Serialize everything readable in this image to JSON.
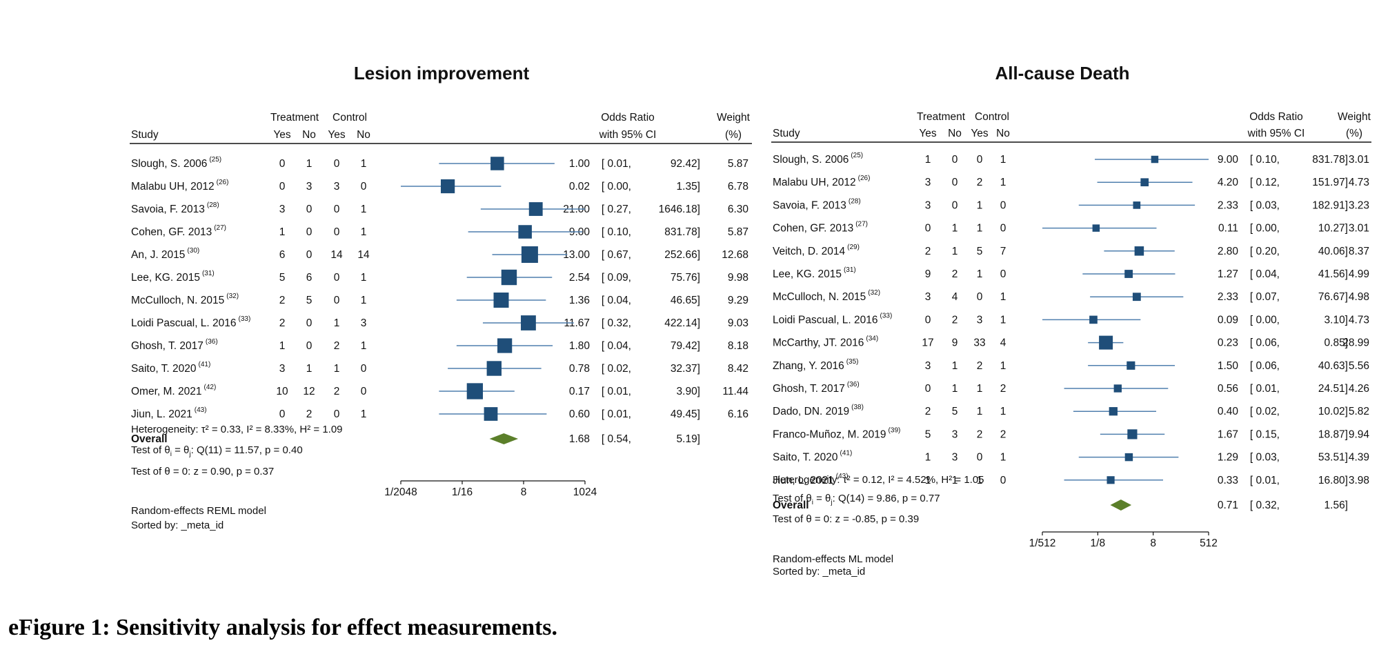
{
  "caption": "eFigure 1: Sensitivity analysis for effect measurements.",
  "chart_data": [
    {
      "type": "forest",
      "title": "Lesion improvement",
      "headers": {
        "study": "Study",
        "treatment": "Treatment",
        "control": "Control",
        "yes": "Yes",
        "no": "No",
        "or_line1": "Odds Ratio",
        "or_line2": "with 95% CI",
        "w_line1": "Weight",
        "w_line2": "(%)"
      },
      "x_scale": "log2",
      "x_ticks": [
        "1/2048",
        "1/16",
        "8",
        "1024"
      ],
      "x_tick_values": [
        0.00048828125,
        0.0625,
        8,
        1024
      ],
      "studies": [
        {
          "name": "Slough, S. 2006",
          "ref": "(25)",
          "t_yes": "0",
          "t_no": "1",
          "c_yes": "0",
          "c_no": "1",
          "or": 1.0,
          "lo": 0.01,
          "hi": 92.42,
          "or_text": "1.00",
          "lo_text": "[ 0.01,",
          "hi_text": "92.42]",
          "weight": "5.87"
        },
        {
          "name": "Malabu UH, 2012",
          "ref": "(26)",
          "t_yes": "0",
          "t_no": "3",
          "c_yes": "3",
          "c_no": "0",
          "or": 0.02,
          "lo": 0.0,
          "hi": 1.35,
          "or_text": "0.02",
          "lo_text": "[ 0.00,",
          "hi_text": "1.35]",
          "weight": "6.78"
        },
        {
          "name": "Savoia, F. 2013",
          "ref": "(28)",
          "t_yes": "3",
          "t_no": "0",
          "c_yes": "0",
          "c_no": "1",
          "or": 21.0,
          "lo": 0.27,
          "hi": 1646.18,
          "or_text": "21.00",
          "lo_text": "[ 0.27,",
          "hi_text": "1646.18]",
          "weight": "6.30"
        },
        {
          "name": "Cohen, GF. 2013",
          "ref": "(27)",
          "t_yes": "1",
          "t_no": "0",
          "c_yes": "0",
          "c_no": "1",
          "or": 9.0,
          "lo": 0.1,
          "hi": 831.78,
          "or_text": "9.00",
          "lo_text": "[ 0.10,",
          "hi_text": "831.78]",
          "weight": "5.87"
        },
        {
          "name": "An, J. 2015",
          "ref": "(30)",
          "t_yes": "6",
          "t_no": "0",
          "c_yes": "14",
          "c_no": "14",
          "or": 13.0,
          "lo": 0.67,
          "hi": 252.66,
          "or_text": "13.00",
          "lo_text": "[ 0.67,",
          "hi_text": "252.66]",
          "weight": "12.68"
        },
        {
          "name": "Lee, KG. 2015",
          "ref": "(31)",
          "t_yes": "5",
          "t_no": "6",
          "c_yes": "0",
          "c_no": "1",
          "or": 2.54,
          "lo": 0.09,
          "hi": 75.76,
          "or_text": "2.54",
          "lo_text": "[ 0.09,",
          "hi_text": "75.76]",
          "weight": "9.98"
        },
        {
          "name": "McCulloch, N. 2015",
          "ref": "(32)",
          "t_yes": "2",
          "t_no": "5",
          "c_yes": "0",
          "c_no": "1",
          "or": 1.36,
          "lo": 0.04,
          "hi": 46.65,
          "or_text": "1.36",
          "lo_text": "[ 0.04,",
          "hi_text": "46.65]",
          "weight": "9.29"
        },
        {
          "name": "Loidi Pascual, L. 2016",
          "ref": "(33)",
          "t_yes": "2",
          "t_no": "0",
          "c_yes": "1",
          "c_no": "3",
          "or": 11.67,
          "lo": 0.32,
          "hi": 422.14,
          "or_text": "11.67",
          "lo_text": "[ 0.32,",
          "hi_text": "422.14]",
          "weight": "9.03"
        },
        {
          "name": "Ghosh, T. 2017",
          "ref": "(36)",
          "t_yes": "1",
          "t_no": "0",
          "c_yes": "2",
          "c_no": "1",
          "or": 1.8,
          "lo": 0.04,
          "hi": 79.42,
          "or_text": "1.80",
          "lo_text": "[ 0.04,",
          "hi_text": "79.42]",
          "weight": "8.18"
        },
        {
          "name": "Saito, T. 2020",
          "ref": "(41)",
          "t_yes": "3",
          "t_no": "1",
          "c_yes": "1",
          "c_no": "0",
          "or": 0.78,
          "lo": 0.02,
          "hi": 32.37,
          "or_text": "0.78",
          "lo_text": "[ 0.02,",
          "hi_text": "32.37]",
          "weight": "8.42"
        },
        {
          "name": "Omer, M. 2021",
          "ref": "(42)",
          "t_yes": "10",
          "t_no": "12",
          "c_yes": "2",
          "c_no": "0",
          "or": 0.17,
          "lo": 0.01,
          "hi": 3.9,
          "or_text": "0.17",
          "lo_text": "[ 0.01,",
          "hi_text": "3.90]",
          "weight": "11.44"
        },
        {
          "name": "Jiun, L. 2021",
          "ref": "(43)",
          "t_yes": "0",
          "t_no": "2",
          "c_yes": "0",
          "c_no": "1",
          "or": 0.6,
          "lo": 0.01,
          "hi": 49.45,
          "or_text": "0.60",
          "lo_text": "[ 0.01,",
          "hi_text": "49.45]",
          "weight": "6.16"
        }
      ],
      "overall": {
        "label": "Overall",
        "or": 1.68,
        "lo": 0.54,
        "hi": 5.19,
        "or_text": "1.68",
        "lo_text": "[ 0.54,",
        "hi_text": "5.19]"
      },
      "footer": {
        "heterogeneity": "Heterogeneity: τ² = 0.33, I² = 8.33%, H² = 1.09",
        "test_theta_pre": "Test of θ",
        "test_theta_sub1": "i",
        "test_theta_mid": " = θ",
        "test_theta_sub2": "j",
        "test_theta_post": ": Q(11) = 11.57, p = 0.40",
        "test_zero": "Test of θ = 0: z = 0.90, p = 0.37",
        "model": "Random-effects REML model",
        "sorted": "Sorted by: _meta_id"
      }
    },
    {
      "type": "forest",
      "title": "All-cause Death",
      "headers": {
        "study": "Study",
        "treatment": "Treatment",
        "control": "Control",
        "yes": "Yes",
        "no": "No",
        "or_line1": "Odds Ratio",
        "or_line2": "with 95% CI",
        "w_line1": "Weight",
        "w_line2": "(%)"
      },
      "x_scale": "log2",
      "x_ticks": [
        "1/512",
        "1/8",
        "8",
        "512"
      ],
      "x_tick_values": [
        0.001953125,
        0.125,
        8,
        512
      ],
      "studies": [
        {
          "name": "Slough, S. 2006",
          "ref": "(25)",
          "t_yes": "1",
          "t_no": "0",
          "c_yes": "0",
          "c_no": "1",
          "or": 9.0,
          "lo": 0.1,
          "hi": 831.78,
          "or_text": "9.00",
          "lo_text": "[ 0.10,",
          "hi_text": "831.78]",
          "weight": "3.01"
        },
        {
          "name": "Malabu UH, 2012",
          "ref": "(26)",
          "t_yes": "3",
          "t_no": "0",
          "c_yes": "2",
          "c_no": "1",
          "or": 4.2,
          "lo": 0.12,
          "hi": 151.97,
          "or_text": "4.20",
          "lo_text": "[ 0.12,",
          "hi_text": "151.97]",
          "weight": "4.73"
        },
        {
          "name": "Savoia, F. 2013",
          "ref": "(28)",
          "t_yes": "3",
          "t_no": "0",
          "c_yes": "1",
          "c_no": "0",
          "or": 2.33,
          "lo": 0.03,
          "hi": 182.91,
          "or_text": "2.33",
          "lo_text": "[ 0.03,",
          "hi_text": "182.91]",
          "weight": "3.23"
        },
        {
          "name": "Cohen, GF. 2013",
          "ref": "(27)",
          "t_yes": "0",
          "t_no": "1",
          "c_yes": "1",
          "c_no": "0",
          "or": 0.11,
          "lo": 0.0,
          "hi": 10.27,
          "or_text": "0.11",
          "lo_text": "[ 0.00,",
          "hi_text": "10.27]",
          "weight": "3.01"
        },
        {
          "name": "Veitch, D. 2014",
          "ref": "(29)",
          "t_yes": "2",
          "t_no": "1",
          "c_yes": "5",
          "c_no": "7",
          "or": 2.8,
          "lo": 0.2,
          "hi": 40.06,
          "or_text": "2.80",
          "lo_text": "[ 0.20,",
          "hi_text": "40.06]",
          "weight": "8.37"
        },
        {
          "name": "Lee, KG. 2015",
          "ref": "(31)",
          "t_yes": "9",
          "t_no": "2",
          "c_yes": "1",
          "c_no": "0",
          "or": 1.27,
          "lo": 0.04,
          "hi": 41.56,
          "or_text": "1.27",
          "lo_text": "[ 0.04,",
          "hi_text": "41.56]",
          "weight": "4.99"
        },
        {
          "name": "McCulloch, N. 2015",
          "ref": "(32)",
          "t_yes": "3",
          "t_no": "4",
          "c_yes": "0",
          "c_no": "1",
          "or": 2.33,
          "lo": 0.07,
          "hi": 76.67,
          "or_text": "2.33",
          "lo_text": "[ 0.07,",
          "hi_text": "76.67]",
          "weight": "4.98"
        },
        {
          "name": "Loidi Pascual, L. 2016",
          "ref": "(33)",
          "t_yes": "0",
          "t_no": "2",
          "c_yes": "3",
          "c_no": "1",
          "or": 0.09,
          "lo": 0.0,
          "hi": 3.1,
          "or_text": "0.09",
          "lo_text": "[ 0.00,",
          "hi_text": "3.10]",
          "weight": "4.73"
        },
        {
          "name": "McCarthy, JT. 2016",
          "ref": "(34)",
          "t_yes": "17",
          "t_no": "9",
          "c_yes": "33",
          "c_no": "4",
          "or": 0.23,
          "lo": 0.06,
          "hi": 0.85,
          "or_text": "0.23",
          "lo_text": "[ 0.06,",
          "hi_text": "0.85]",
          "weight": "28.99"
        },
        {
          "name": "Zhang, Y. 2016",
          "ref": "(35)",
          "t_yes": "3",
          "t_no": "1",
          "c_yes": "2",
          "c_no": "1",
          "or": 1.5,
          "lo": 0.06,
          "hi": 40.63,
          "or_text": "1.50",
          "lo_text": "[ 0.06,",
          "hi_text": "40.63]",
          "weight": "5.56"
        },
        {
          "name": "Ghosh, T. 2017",
          "ref": "(36)",
          "t_yes": "0",
          "t_no": "1",
          "c_yes": "1",
          "c_no": "2",
          "or": 0.56,
          "lo": 0.01,
          "hi": 24.51,
          "or_text": "0.56",
          "lo_text": "[ 0.01,",
          "hi_text": "24.51]",
          "weight": "4.26"
        },
        {
          "name": "Dado, DN. 2019",
          "ref": "(38)",
          "t_yes": "2",
          "t_no": "5",
          "c_yes": "1",
          "c_no": "1",
          "or": 0.4,
          "lo": 0.02,
          "hi": 10.02,
          "or_text": "0.40",
          "lo_text": "[ 0.02,",
          "hi_text": "10.02]",
          "weight": "5.82"
        },
        {
          "name": "Franco-Muñoz, M. 2019",
          "ref": "(39)",
          "t_yes": "5",
          "t_no": "3",
          "c_yes": "2",
          "c_no": "2",
          "or": 1.67,
          "lo": 0.15,
          "hi": 18.87,
          "or_text": "1.67",
          "lo_text": "[ 0.15,",
          "hi_text": "18.87]",
          "weight": "9.94"
        },
        {
          "name": "Saito, T. 2020",
          "ref": "(41)",
          "t_yes": "1",
          "t_no": "3",
          "c_yes": "0",
          "c_no": "1",
          "or": 1.29,
          "lo": 0.03,
          "hi": 53.51,
          "or_text": "1.29",
          "lo_text": "[ 0.03,",
          "hi_text": "53.51]",
          "weight": "4.39"
        },
        {
          "name": "Jiun, L. 2021",
          "ref": "(43)",
          "t_yes": "1",
          "t_no": "1",
          "c_yes": "1",
          "c_no": "0",
          "or": 0.33,
          "lo": 0.01,
          "hi": 16.8,
          "or_text": "0.33",
          "lo_text": "[ 0.01,",
          "hi_text": "16.80]",
          "weight": "3.98"
        }
      ],
      "overall": {
        "label": "Overall",
        "or": 0.71,
        "lo": 0.32,
        "hi": 1.56,
        "or_text": "0.71",
        "lo_text": "[ 0.32,",
        "hi_text": "1.56]"
      },
      "footer": {
        "heterogeneity": "Heterogeneity: τ² = 0.12, I² = 4.52%, H² = 1.05",
        "test_theta_pre": "Test of θ",
        "test_theta_sub1": "i",
        "test_theta_mid": " = θ",
        "test_theta_sub2": "j",
        "test_theta_post": ": Q(14) = 9.86, p = 0.77",
        "test_zero": "Test of θ = 0: z = -0.85, p = 0.39",
        "model": "Random-effects ML model",
        "sorted": "Sorted by: _meta_id"
      }
    }
  ],
  "colors": {
    "marker": "#1f4e79",
    "ci_line": "#4f7fae",
    "diamond": "#5b7f2a",
    "text": "#111111"
  }
}
